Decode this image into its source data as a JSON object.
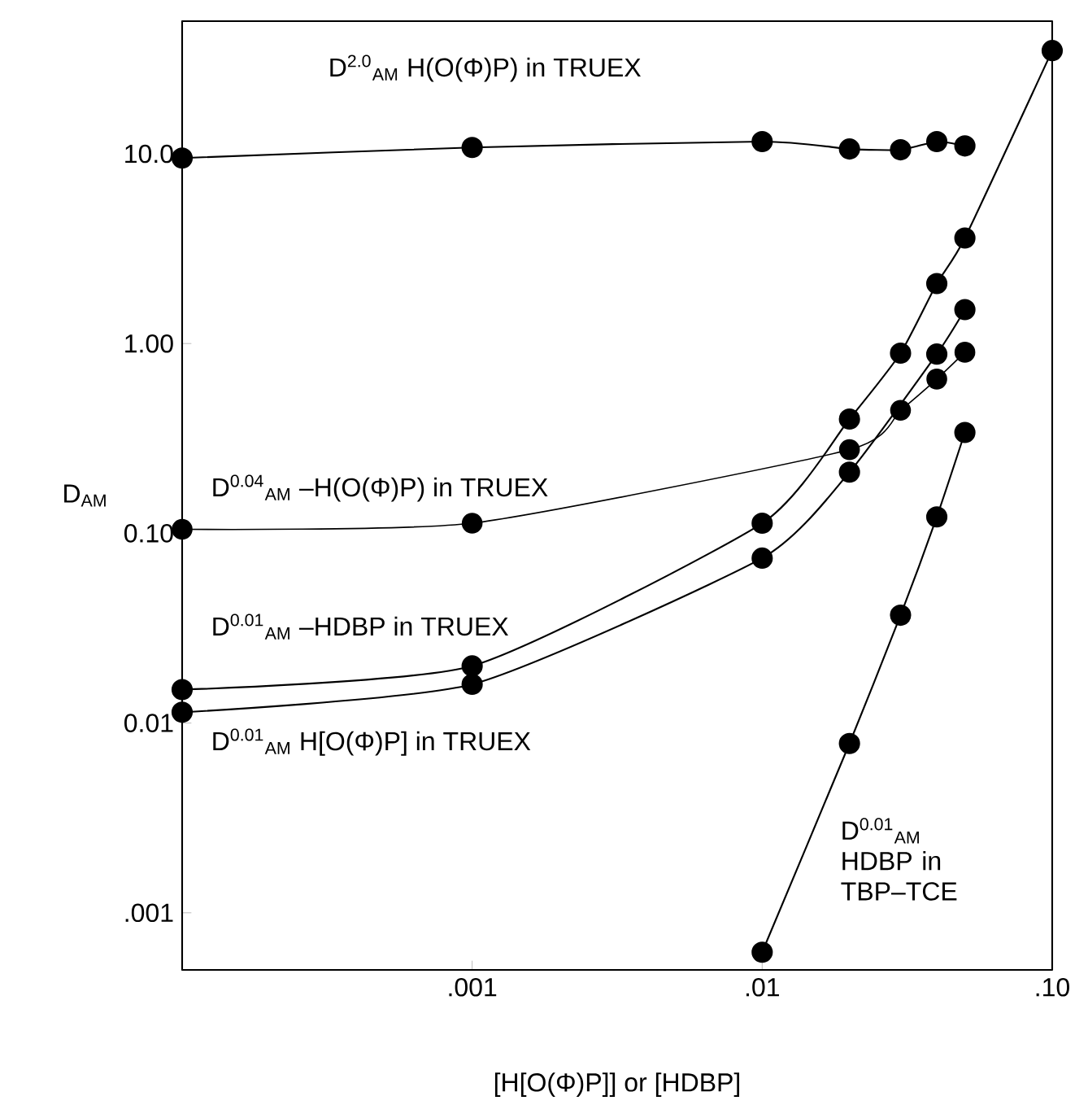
{
  "chart_data": {
    "type": "line",
    "xlabel": "[H[O(Φ)P]] or [HDBP]",
    "ylabel": "D$_{AM}$",
    "log": "xy",
    "xlim": [
      0.0001,
      0.1
    ],
    "ylim": [
      0.0005,
      50
    ],
    "xticks": [
      {
        "value": 0.001,
        "label": ".001"
      },
      {
        "value": 0.01,
        "label": ".01"
      },
      {
        "value": 0.1,
        "label": ".10"
      }
    ],
    "yticks": [
      {
        "value": 0.001,
        "label": ".001"
      },
      {
        "value": 0.01,
        "label": "0.01"
      },
      {
        "value": 0.1,
        "label": "0.10"
      },
      {
        "value": 1,
        "label": "1.00"
      },
      {
        "value": 10,
        "label": "10.0"
      }
    ],
    "marker": "circle",
    "line_style": "solid",
    "legend": false,
    "grid": false,
    "series": [
      {
        "name": "D$^{2.0}$$_{AM}$ H(O(Φ)P) in TRUEX",
        "color": "#000000",
        "x": [
          0.0001,
          0.001,
          0.01,
          0.02,
          0.03,
          0.04,
          0.05
        ],
        "values": [
          9.5,
          10.8,
          11.6,
          10.6,
          10.5,
          11.6,
          11.0
        ]
      },
      {
        "name": "D$^{0.04}$$_{AM}$ –H(O(Φ)P) in TRUEX",
        "color": "#000000",
        "x": [
          0.0001,
          0.001,
          0.02,
          0.03,
          0.04,
          0.05
        ],
        "values": [
          0.105,
          0.113,
          0.276,
          0.445,
          0.65,
          0.9
        ]
      },
      {
        "name": "D$^{0.01}$$_{AM}$ –HDBP in TRUEX",
        "color": "#000000",
        "x": [
          0.0001,
          0.001,
          0.01,
          0.02,
          0.03,
          0.04,
          0.05,
          0.1
        ],
        "values": [
          0.015,
          0.02,
          0.113,
          0.4,
          0.89,
          2.07,
          3.6,
          35
        ]
      },
      {
        "name": "D$^{0.01}$$_{AM}$ H[O(Φ)P] in TRUEX",
        "color": "#000000",
        "x": [
          0.0001,
          0.001,
          0.01,
          0.02,
          0.04,
          0.05
        ],
        "values": [
          0.0114,
          0.016,
          0.074,
          0.21,
          0.88,
          1.51
        ]
      },
      {
        "name": "D$^{0.01}$$_{AM}$ HDBP in TBP–TCE",
        "color": "#000000",
        "x": [
          0.01,
          0.02,
          0.03,
          0.04,
          0.05
        ],
        "values": [
          0.00062,
          0.0078,
          0.037,
          0.122,
          0.34
        ]
      }
    ]
  }
}
